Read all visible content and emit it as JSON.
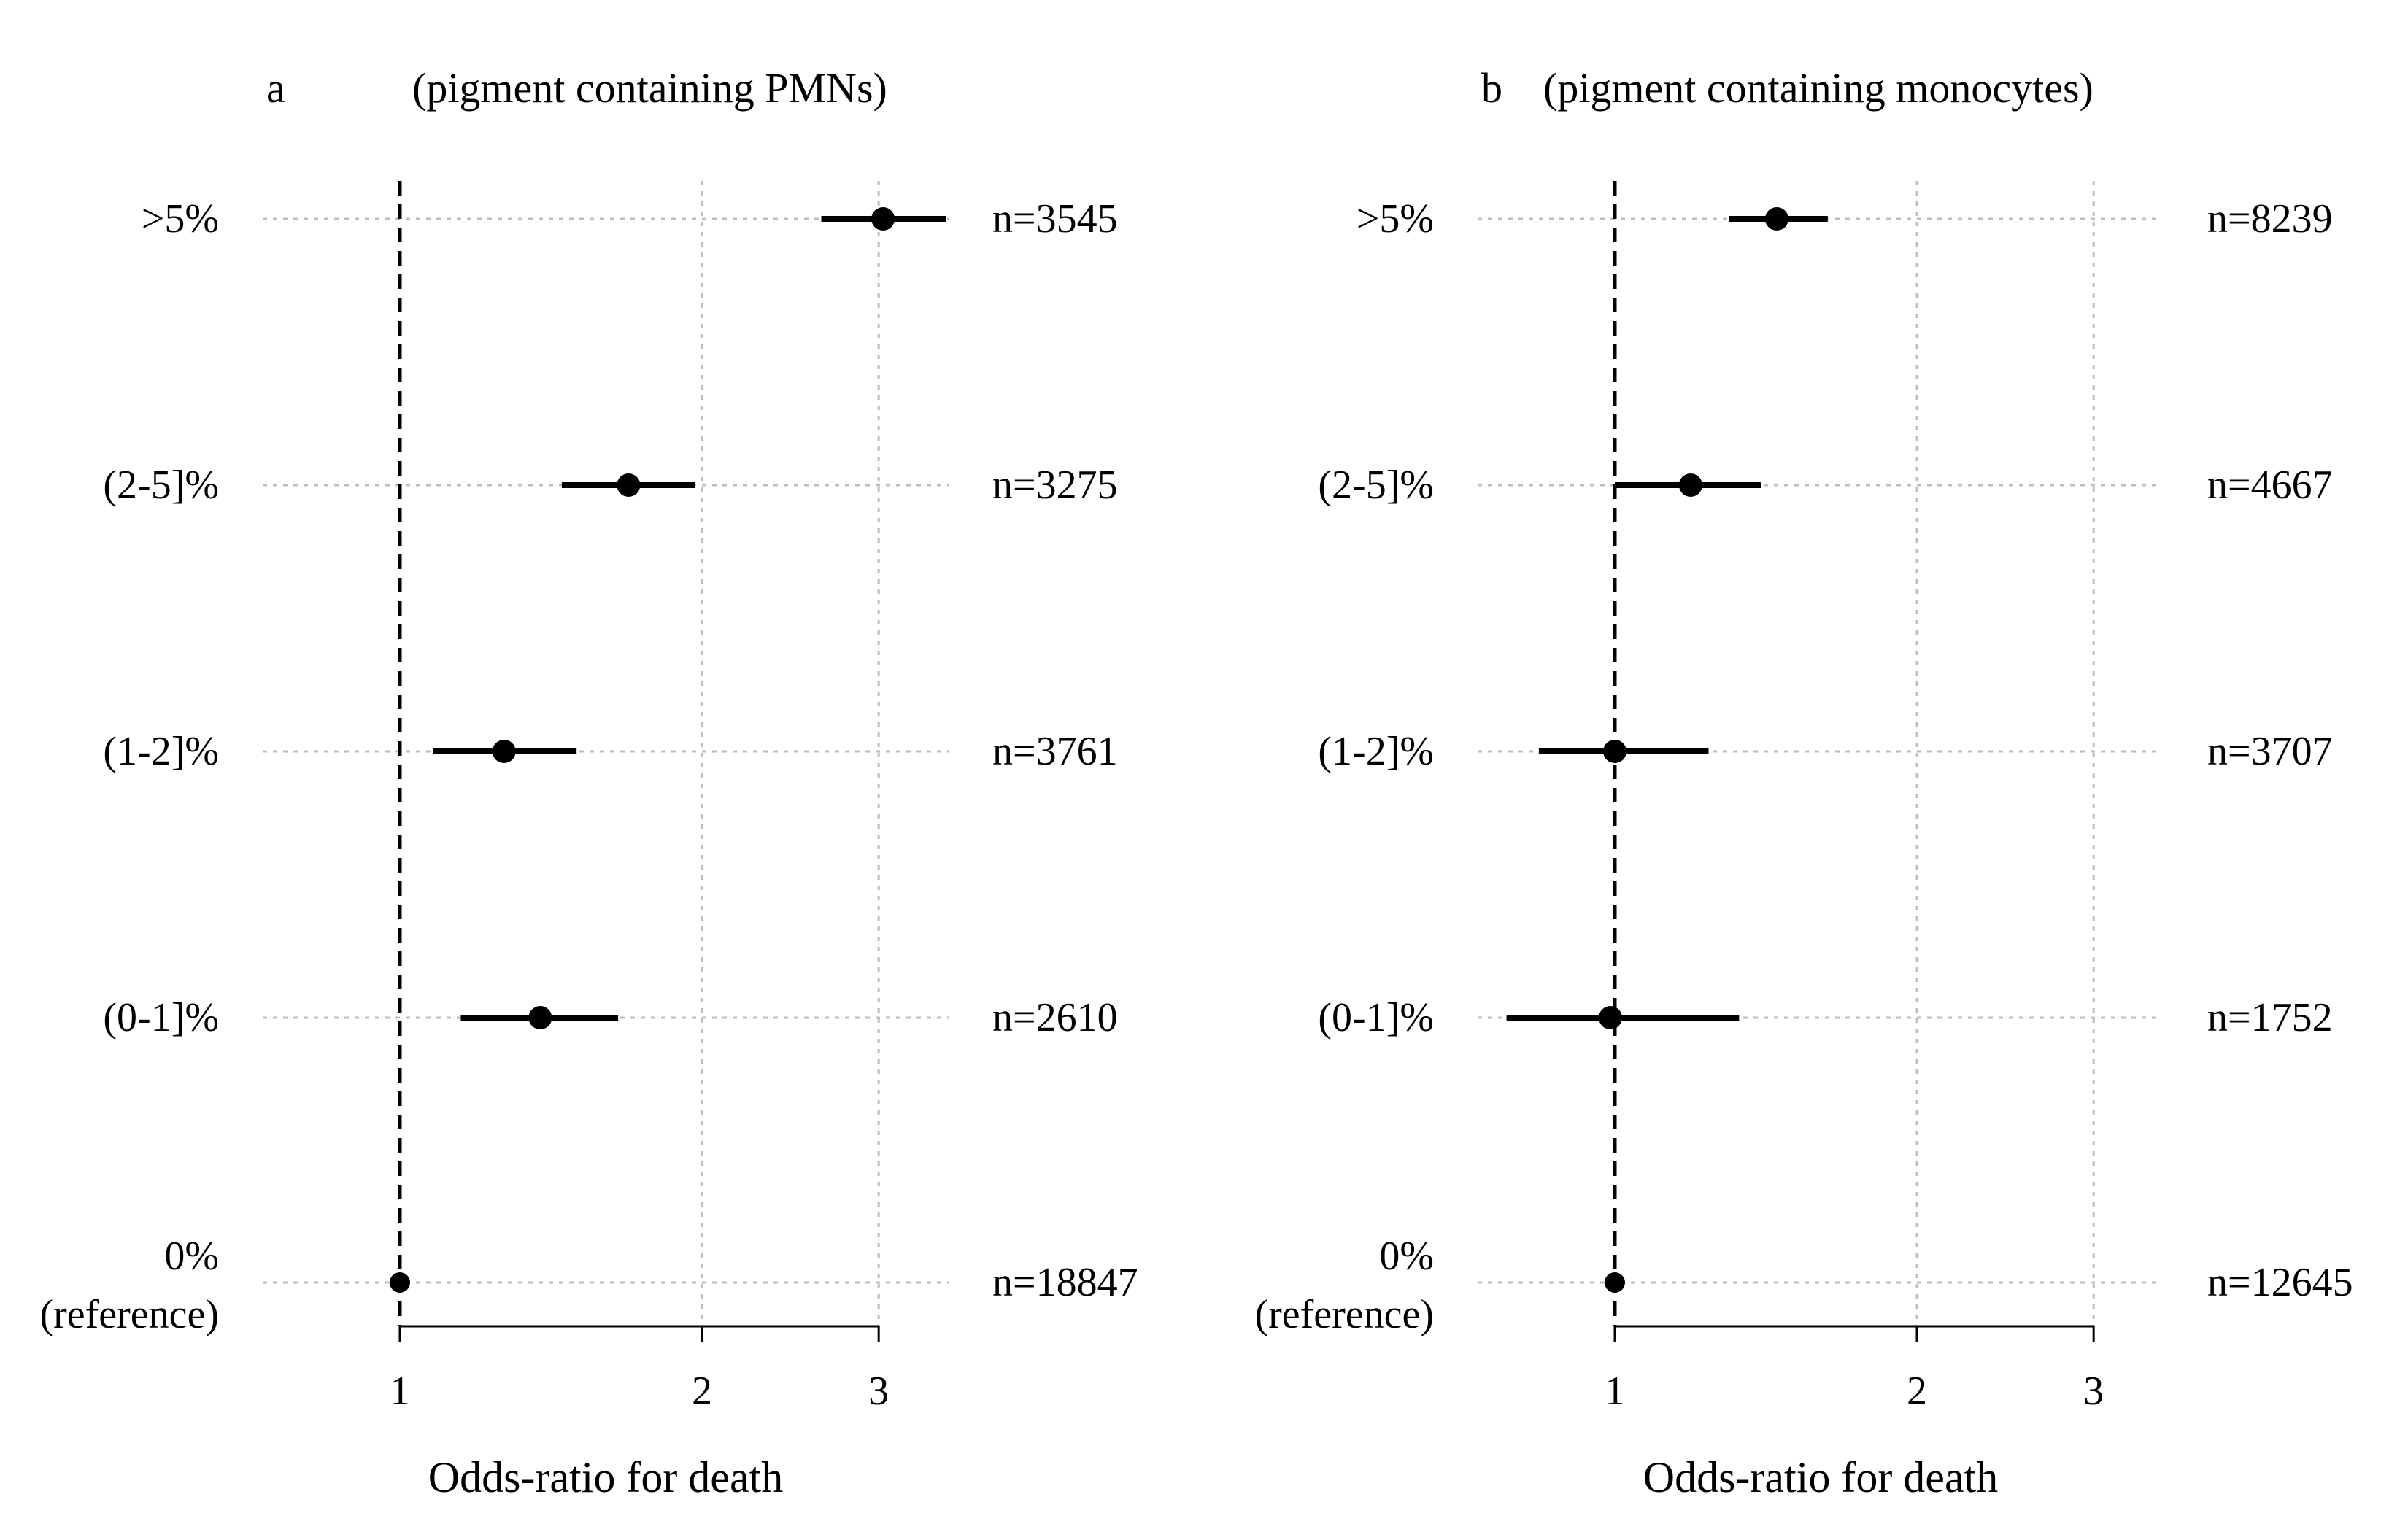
{
  "figure": {
    "background": "#ffffff",
    "ink_color": "#000000",
    "grid_color": "#bdbdbd"
  },
  "chart_data": [
    {
      "type": "forest",
      "panel_letter": "a",
      "title": "(pigment containing PMNs)",
      "xlabel": "Odds-ratio for death",
      "x_scale": "log",
      "xlim": [
        0.82,
        3.5
      ],
      "xticks": [
        1,
        2,
        3
      ],
      "xtick_labels": [
        "1",
        "2",
        "3"
      ],
      "reference_value": 1,
      "reference_line": "dashed",
      "grid": true,
      "rows": [
        {
          "label": ">5%",
          "label_line2": "",
          "n_label": "n=3545",
          "or": 3.03,
          "ci_low": 2.63,
          "ci_high": 3.5
        },
        {
          "label": "(2-5]%",
          "label_line2": "",
          "n_label": "n=3275",
          "or": 1.69,
          "ci_low": 1.45,
          "ci_high": 1.97
        },
        {
          "label": "(1-2]%",
          "label_line2": "",
          "n_label": "n=3761",
          "or": 1.27,
          "ci_low": 1.08,
          "ci_high": 1.5
        },
        {
          "label": "(0-1]%",
          "label_line2": "",
          "n_label": "n=2610",
          "or": 1.38,
          "ci_low": 1.15,
          "ci_high": 1.65
        },
        {
          "label": "0%",
          "label_line2": "(reference)",
          "n_label": "n=18847",
          "or": 1.0,
          "ci_low": 1.0,
          "ci_high": 1.0
        }
      ]
    },
    {
      "type": "forest",
      "panel_letter": "b",
      "title": "(pigment containing monocytes)",
      "xlabel": "Odds-ratio for death",
      "x_scale": "log",
      "xlim": [
        0.82,
        3.5
      ],
      "xticks": [
        1,
        2,
        3
      ],
      "xtick_labels": [
        "1",
        "2",
        "3"
      ],
      "reference_value": 1,
      "reference_line": "dashed",
      "grid": true,
      "rows": [
        {
          "label": ">5%",
          "label_line2": "",
          "n_label": "n=8239",
          "or": 1.45,
          "ci_low": 1.3,
          "ci_high": 1.63
        },
        {
          "label": "(2-5]%",
          "label_line2": "",
          "n_label": "n=4667",
          "or": 1.19,
          "ci_low": 1.0,
          "ci_high": 1.4
        },
        {
          "label": "(1-2]%",
          "label_line2": "",
          "n_label": "n=3707",
          "or": 1.0,
          "ci_low": 0.84,
          "ci_high": 1.24
        },
        {
          "label": "(0-1]%",
          "label_line2": "",
          "n_label": "n=1752",
          "or": 0.99,
          "ci_low": 0.78,
          "ci_high": 1.33
        },
        {
          "label": "0%",
          "label_line2": "(reference)",
          "n_label": "n=12645",
          "or": 1.0,
          "ci_low": 1.0,
          "ci_high": 1.0
        }
      ]
    }
  ]
}
